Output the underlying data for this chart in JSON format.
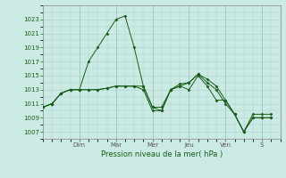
{
  "xlabel": "Pression niveau de la mer( hPa )",
  "ylim": [
    1006,
    1025
  ],
  "yticks": [
    1007,
    1009,
    1011,
    1013,
    1015,
    1017,
    1019,
    1021,
    1023
  ],
  "bg_color": "#cceae4",
  "grid_color": "#aad4cc",
  "line_color": "#1a5c1a",
  "day_labels": [
    "Dim",
    "Mar",
    "Mer",
    "Jeu",
    "Ven",
    "S"
  ],
  "day_positions": [
    2,
    4,
    6,
    8,
    10,
    12
  ],
  "xlim": [
    0,
    13
  ],
  "line1": {
    "x": [
      0,
      0.5,
      1,
      1.5,
      2,
      2.5,
      3,
      3.5,
      4,
      4.5,
      5,
      5.5,
      6,
      6.5,
      7,
      7.5,
      8,
      8.5,
      9,
      9.5,
      10,
      10.5,
      11,
      11.5,
      12,
      12.5
    ],
    "y": [
      1010.5,
      1011,
      1012.5,
      1013,
      1013,
      1017,
      1019,
      1021,
      1023,
      1023.5,
      1019,
      1013.5,
      1010.5,
      1010,
      1013,
      1013.5,
      1013,
      1015,
      1013.5,
      1011.5,
      1011.5,
      1009.5,
      1007,
      1009,
      1009,
      1009
    ]
  },
  "line2": {
    "x": [
      0,
      0.5,
      1,
      1.5,
      2,
      2.5,
      3,
      3.5,
      4,
      4.5,
      5,
      5.5,
      6,
      6.5,
      7,
      7.5,
      8,
      8.5,
      9,
      9.5,
      10,
      10.5,
      11,
      11.5,
      12,
      12.5
    ],
    "y": [
      1010.5,
      1011,
      1012.5,
      1013,
      1013,
      1013,
      1013,
      1013.2,
      1013.5,
      1013.5,
      1013.5,
      1013.5,
      1010.5,
      1010.5,
      1013,
      1013.8,
      1014,
      1015.2,
      1014.5,
      1013.5,
      1011.5,
      1009.5,
      1007,
      1009.5,
      1009.5,
      1009.5
    ]
  },
  "line3": {
    "x": [
      0,
      0.5,
      1,
      1.5,
      2,
      2.5,
      3,
      3.5,
      4,
      4.5,
      5,
      5.5,
      6,
      6.5,
      7,
      7.5,
      8,
      8.5,
      9,
      9.5,
      10,
      10.5,
      11,
      11.5,
      12,
      12.5
    ],
    "y": [
      1010.5,
      1011,
      1012.5,
      1013,
      1013,
      1013,
      1013,
      1013.2,
      1013.5,
      1013.5,
      1013.5,
      1013,
      1010,
      1010,
      1013,
      1013.5,
      1014,
      1015.2,
      1014,
      1013,
      1011,
      1009.5,
      1007,
      1009,
      1009,
      1009
    ]
  }
}
